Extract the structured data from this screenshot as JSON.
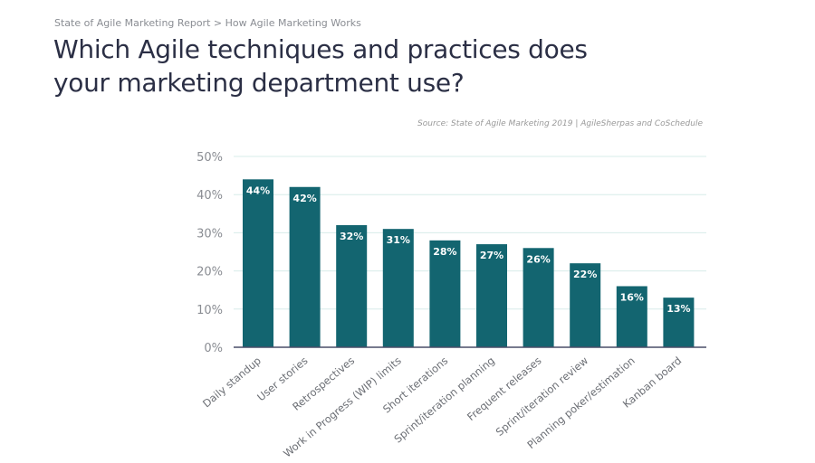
{
  "header": {
    "breadcrumb": "State of Agile Marketing Report  > How Agile Marketing Works",
    "title_line1": "Which Agile techniques and practices does",
    "title_line2": "your marketing department use?"
  },
  "chart_data": {
    "type": "bar",
    "source": "Source: State of Agile Marketing 2019 | AgileSherpas and CoSchedule",
    "categories": [
      "Daily standup",
      "User stories",
      "Retrospectives",
      "Work in Progress (WIP) limits",
      "Short iterations",
      "Sprint/iteration planning",
      "Frequent releases",
      "Sprint/iteration review",
      "Planning poker/estimation",
      "Kanban board"
    ],
    "values": [
      44,
      42,
      32,
      31,
      28,
      27,
      26,
      22,
      16,
      13
    ],
    "data_labels": [
      "44%",
      "42%",
      "32%",
      "31%",
      "28%",
      "27%",
      "26%",
      "22%",
      "16%",
      "13%"
    ],
    "yticks": [
      "0%",
      "10%",
      "20%",
      "30%",
      "40%",
      "50%"
    ],
    "ylim": [
      0,
      50
    ],
    "grid": true,
    "bar_color": "#136570",
    "grid_color": "#d7ece9"
  }
}
